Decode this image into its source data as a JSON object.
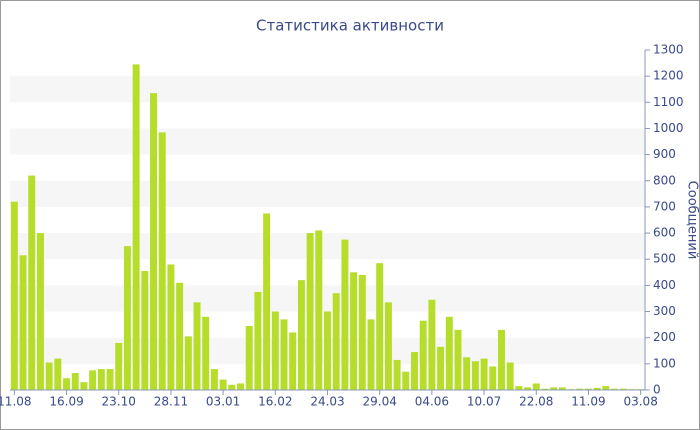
{
  "chart_data": {
    "type": "bar",
    "title": "Статистика активности",
    "y_label": "Сообщений",
    "categories": [
      "11.08",
      null,
      null,
      null,
      null,
      null,
      "16.09",
      null,
      null,
      null,
      null,
      null,
      "23.10",
      null,
      null,
      null,
      null,
      null,
      "28.11",
      null,
      null,
      null,
      null,
      null,
      "03.01",
      null,
      null,
      null,
      null,
      null,
      "16.02",
      null,
      null,
      null,
      null,
      null,
      "24.03",
      null,
      null,
      null,
      null,
      null,
      "29.04",
      null,
      null,
      null,
      null,
      null,
      "04.06",
      null,
      null,
      null,
      null,
      null,
      "10.07",
      null,
      null,
      null,
      null,
      null,
      "22.08",
      null,
      null,
      null,
      null,
      null,
      "11.09",
      null,
      null,
      null,
      null,
      null,
      "03.08"
    ],
    "values": [
      720,
      515,
      820,
      600,
      105,
      120,
      45,
      65,
      30,
      75,
      80,
      80,
      180,
      550,
      1245,
      455,
      1135,
      985,
      480,
      410,
      205,
      335,
      280,
      80,
      40,
      20,
      25,
      245,
      375,
      675,
      300,
      270,
      220,
      420,
      600,
      610,
      300,
      370,
      575,
      450,
      440,
      270,
      485,
      335,
      115,
      70,
      145,
      265,
      345,
      165,
      280,
      230,
      125,
      110,
      120,
      90,
      230,
      105,
      15,
      10,
      25,
      5,
      10,
      10,
      3,
      5,
      5,
      8,
      15,
      5,
      5,
      3,
      3
    ],
    "color": "#b5dd2a",
    "ylim": [
      0,
      1300
    ],
    "yticks": [
      0,
      100,
      200,
      300,
      400,
      500,
      600,
      700,
      800,
      900,
      1000,
      1100,
      1200,
      1300
    ],
    "grid": true
  }
}
